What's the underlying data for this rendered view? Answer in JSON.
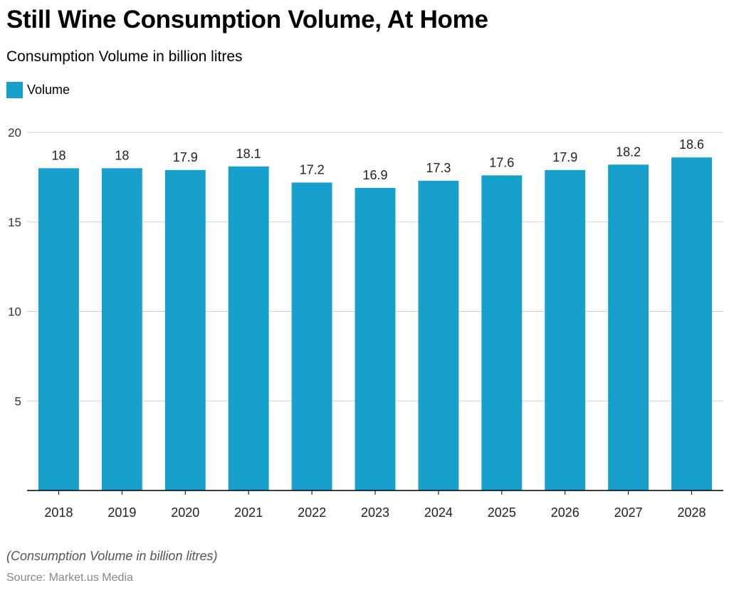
{
  "title": "Still Wine Consumption Volume, At Home",
  "subtitle": "Consumption Volume in billion litres",
  "footnote": "(Consumption Volume in billion litres)",
  "source": "Source: Market.us Media",
  "colors": {
    "bar": "#18a0cd",
    "grid": "#d0d0d0",
    "axis": "#000000",
    "tick_text": "#333333",
    "value_text": "#222222"
  },
  "chart_data": {
    "type": "bar",
    "categories": [
      "2018",
      "2019",
      "2020",
      "2021",
      "2022",
      "2023",
      "2024",
      "2025",
      "2026",
      "2027",
      "2028"
    ],
    "series": [
      {
        "name": "Volume",
        "values": [
          18,
          18,
          17.9,
          18.1,
          17.2,
          16.9,
          17.3,
          17.6,
          17.9,
          18.2,
          18.6
        ],
        "labels": [
          "18",
          "18",
          "17.9",
          "18.1",
          "17.2",
          "16.9",
          "17.3",
          "17.6",
          "17.9",
          "18.2",
          "18.6"
        ]
      }
    ],
    "ylim": [
      0,
      20
    ],
    "yticks": [
      5,
      10,
      15,
      20
    ],
    "grid": true,
    "legend_position": "top-left"
  }
}
